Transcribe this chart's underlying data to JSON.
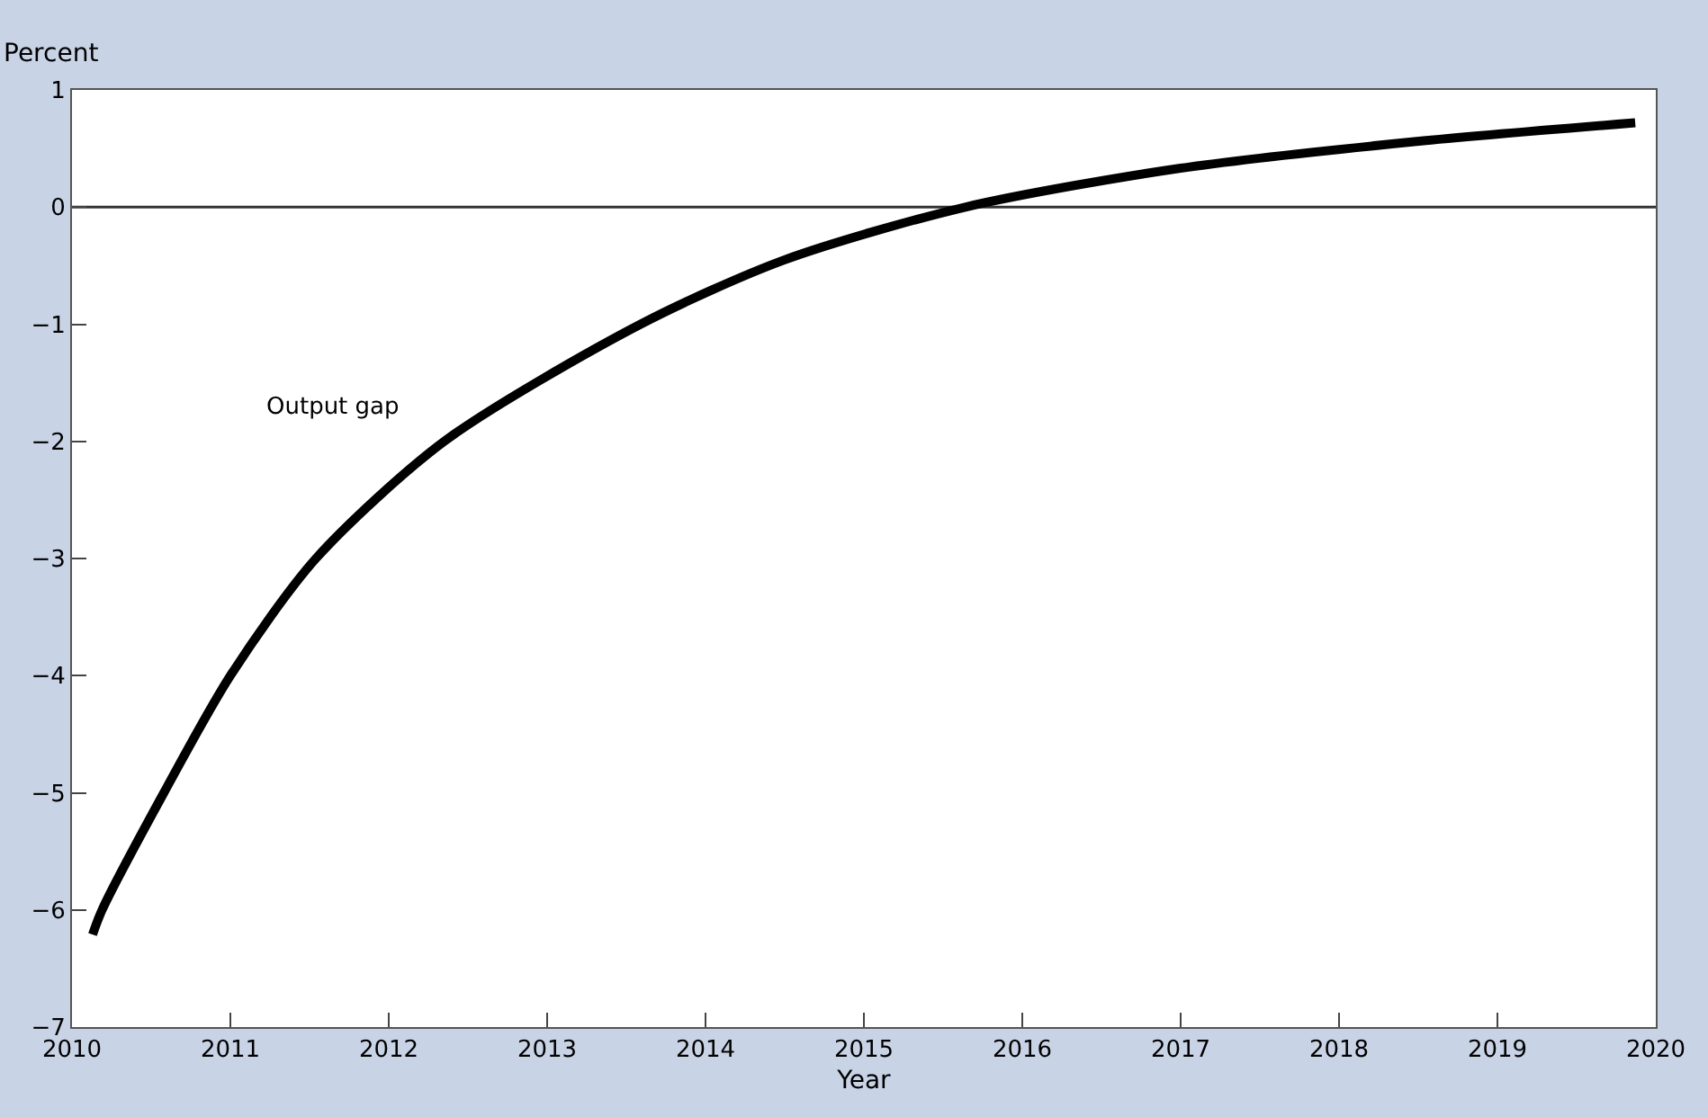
{
  "chart_data": {
    "type": "line",
    "xlabel": "Year",
    "ylabel": "Percent",
    "series": [
      {
        "name": "Output gap",
        "color": "#000000",
        "x": [
          2010.13,
          2010.19,
          2010.58,
          2011.0,
          2011.54,
          2012.35,
          2013.59,
          2014.5,
          2015.64,
          2016.99,
          2018.49,
          2019.87
        ],
        "values": [
          -6.21,
          -6.0,
          -5.0,
          -4.0,
          -3.0,
          -2.0,
          -1.0,
          -0.45,
          0.0,
          0.33,
          0.56,
          0.72
        ]
      }
    ],
    "ref_lines": [
      {
        "axis": "y",
        "value": 0,
        "color": "#333333"
      }
    ],
    "xlim": [
      2010,
      2020
    ],
    "xticks": [
      2010,
      2011,
      2012,
      2013,
      2014,
      2015,
      2016,
      2017,
      2018,
      2019,
      2020
    ],
    "ylim": [
      -7,
      1
    ],
    "yticks": [
      {
        "value": -7,
        "label": "−7"
      },
      {
        "value": -6,
        "label": "−6"
      },
      {
        "value": -5,
        "label": "−5"
      },
      {
        "value": -4,
        "label": "−4"
      },
      {
        "value": -3,
        "label": "−3"
      },
      {
        "value": -2,
        "label": "−2"
      },
      {
        "value": -1,
        "label": "−1"
      },
      0,
      1
    ],
    "grid": false,
    "legend": false,
    "marker": "none",
    "line_style": "solid"
  }
}
